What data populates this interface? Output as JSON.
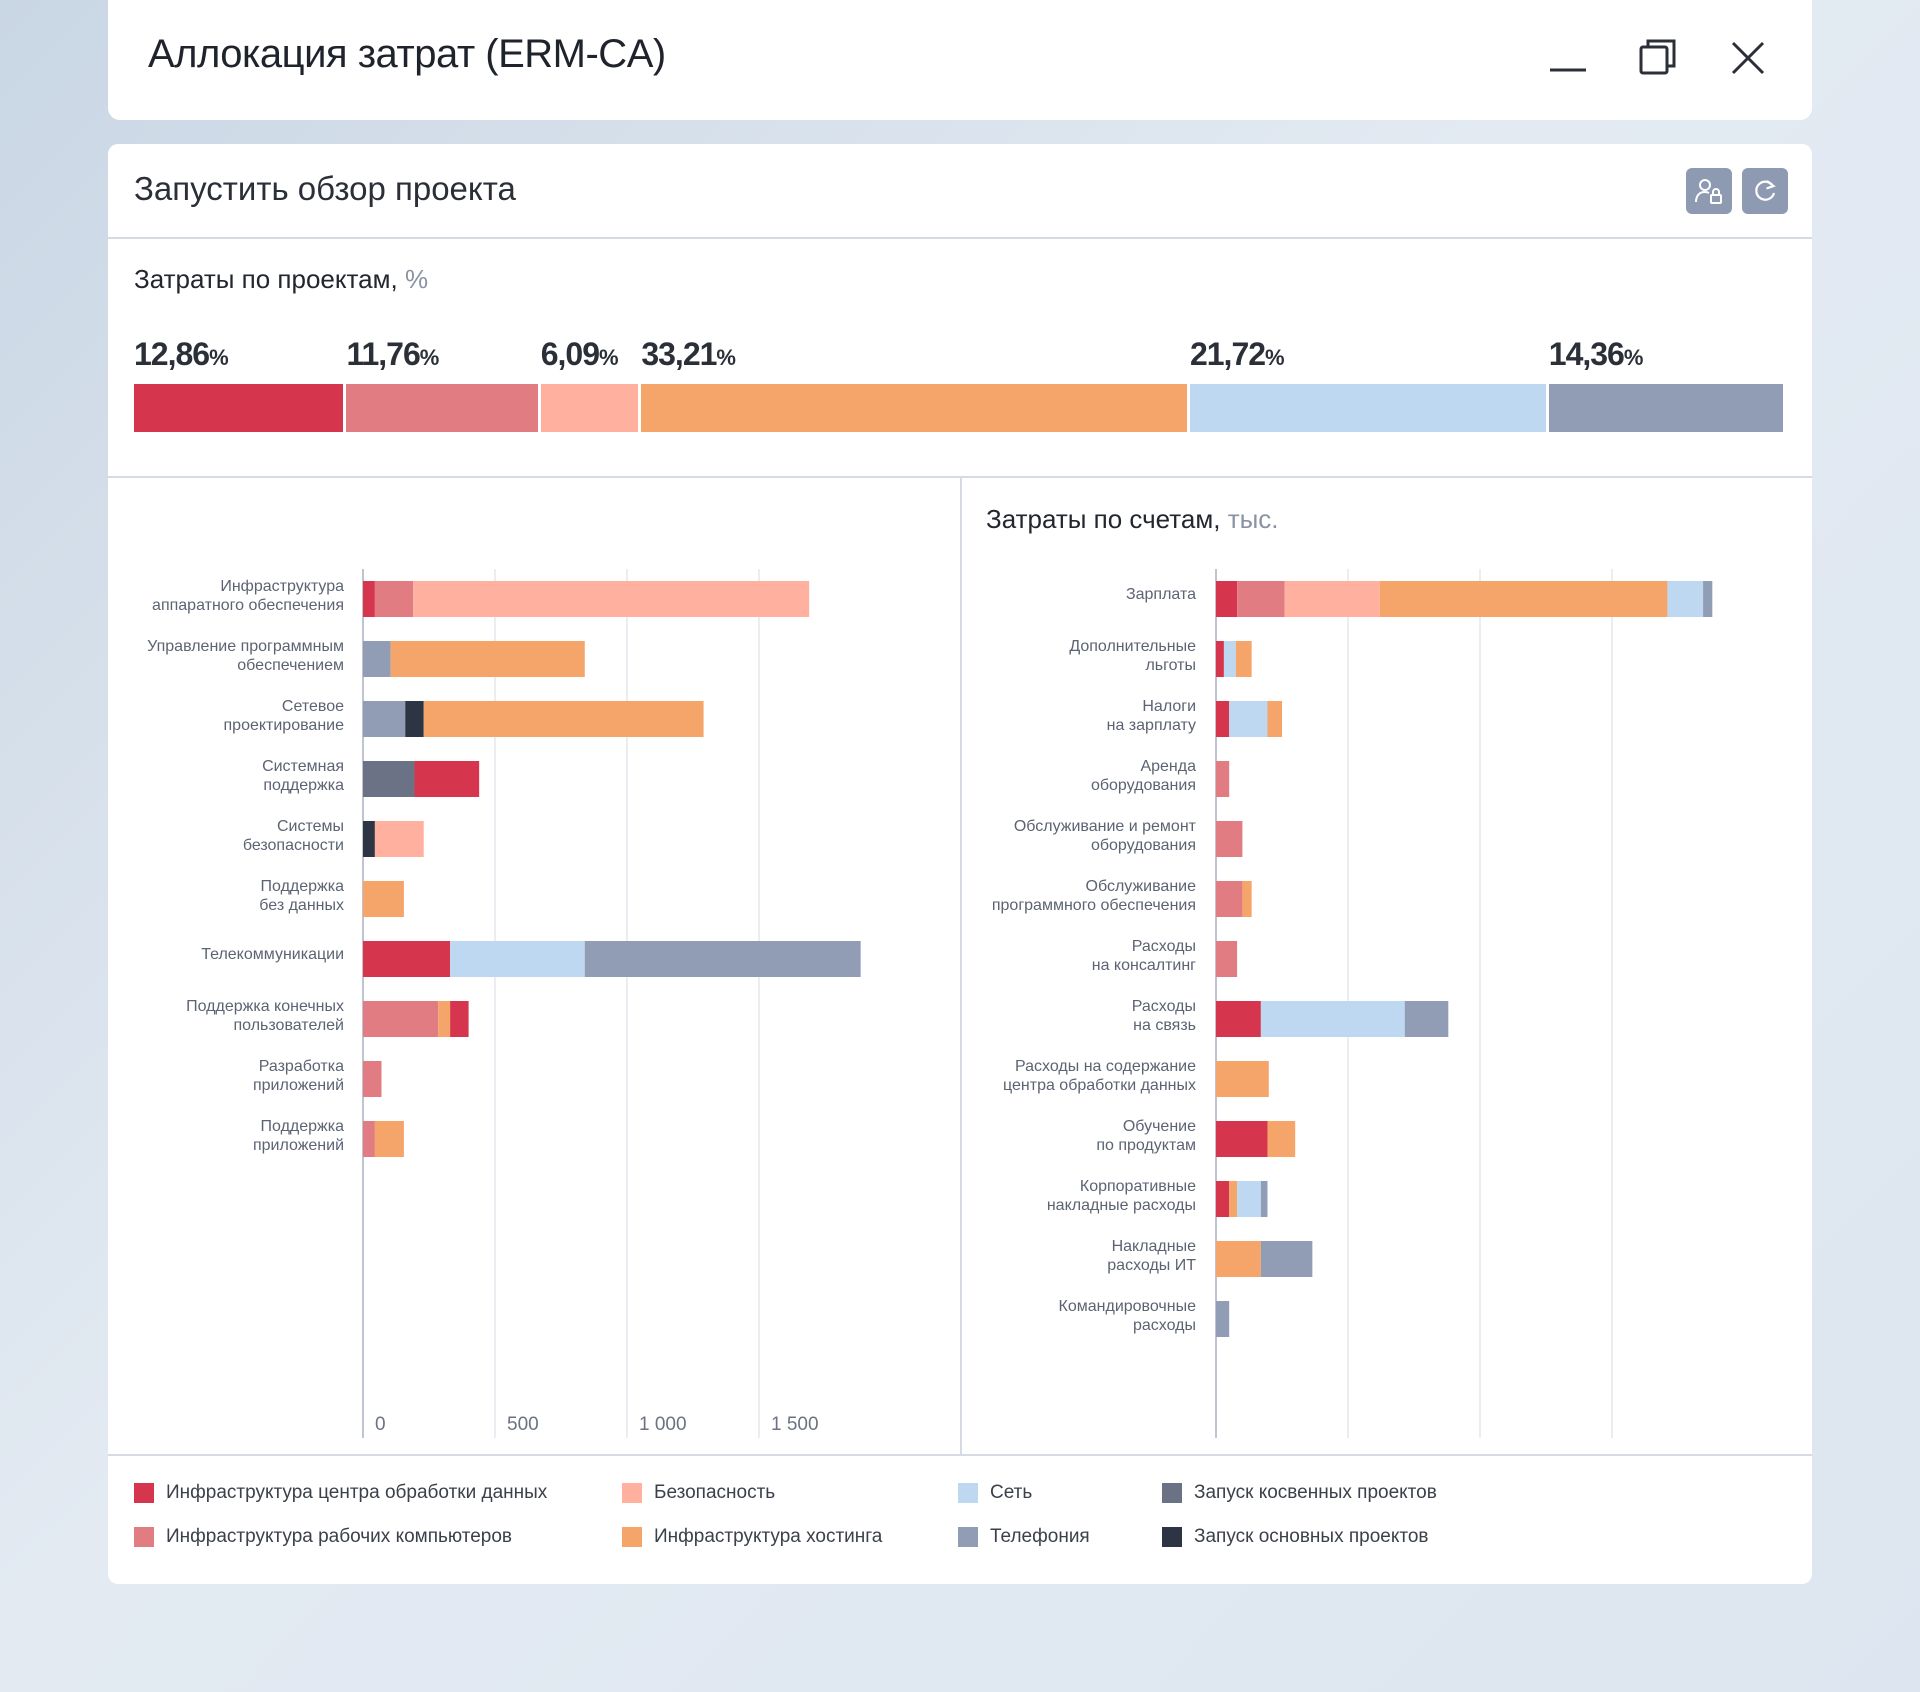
{
  "window": {
    "title": "Аллокация затрат (ERM-CA)"
  },
  "panel": {
    "title": "Запустить обзор проекта"
  },
  "colors": {
    "dc_infra": "#d6364d",
    "workstation_infra": "#e07c82",
    "security": "#ffb09e",
    "hosting": "#f5a569",
    "network": "#bdd8f0",
    "telephony": "#919db5",
    "indirect_launch": "#6b7285",
    "main_launch": "#2d3443"
  },
  "project_costs": {
    "title": "Затраты по проектам,",
    "unit": "%",
    "segments": [
      {
        "key": "dc_infra",
        "value": "12,86",
        "pct": 12.86
      },
      {
        "key": "workstation_infra",
        "value": "11,76",
        "pct": 11.76
      },
      {
        "key": "security",
        "value": "6,09",
        "pct": 6.09
      },
      {
        "key": "hosting",
        "value": "33,21",
        "pct": 33.21
      },
      {
        "key": "network",
        "value": "21,72",
        "pct": 21.72
      },
      {
        "key": "telephony",
        "value": "14,36",
        "pct": 14.36
      }
    ],
    "pct_sign": "%"
  },
  "chart_data": [
    {
      "type": "bar",
      "orientation": "horizontal",
      "stacked": true,
      "title": "",
      "xlim": [
        0,
        2000
      ],
      "xticks": [
        0,
        500,
        1000,
        1500
      ],
      "xtick_labels": [
        "0",
        "500",
        "1 000",
        "1 500"
      ],
      "categories": [
        [
          "Инфраструктура",
          "аппаратного обеспечения"
        ],
        [
          "Управление программным",
          "обеспечением"
        ],
        [
          "Сетевое",
          "проектирование"
        ],
        [
          "Системная",
          "поддержка"
        ],
        [
          "Системы",
          "безопасности"
        ],
        [
          "Поддержка",
          "без данных"
        ],
        [
          "Телекоммуникации"
        ],
        [
          "Поддержка конечных",
          "пользователей"
        ],
        [
          "Разработка",
          "приложений"
        ],
        [
          "Поддержка",
          "приложений"
        ]
      ],
      "bars": [
        [
          [
            "dc_infra",
            45
          ],
          [
            "workstation_infra",
            145
          ],
          [
            "security",
            1500
          ]
        ],
        [
          [
            "telephony",
            105
          ],
          [
            "hosting",
            735
          ]
        ],
        [
          [
            "telephony",
            160
          ],
          [
            "main_launch",
            70
          ],
          [
            "hosting",
            1060
          ]
        ],
        [
          [
            "indirect_launch",
            195
          ],
          [
            "dc_infra",
            245
          ]
        ],
        [
          [
            "main_launch",
            45
          ],
          [
            "security",
            185
          ]
        ],
        [
          [
            "hosting",
            155
          ]
        ],
        [
          [
            "dc_infra",
            330
          ],
          [
            "network",
            510
          ],
          [
            "telephony",
            1045
          ]
        ],
        [
          [
            "workstation_infra",
            285
          ],
          [
            "hosting",
            45
          ],
          [
            "dc_infra",
            70
          ]
        ],
        [
          [
            "workstation_infra",
            70
          ]
        ],
        [
          [
            "workstation_infra",
            45
          ],
          [
            "hosting",
            110
          ]
        ]
      ]
    },
    {
      "type": "bar",
      "orientation": "horizontal",
      "stacked": true,
      "title": "Затраты по счетам,",
      "unit": "тыс.",
      "xlim": [
        0,
        2000
      ],
      "xticks": [
        0,
        500,
        1000,
        1500
      ],
      "categories": [
        [
          "Зарплата"
        ],
        [
          "Дополнительные",
          "льготы"
        ],
        [
          "Налоги",
          "на зарплату"
        ],
        [
          "Аренда",
          "оборудования"
        ],
        [
          "Обслуживание и ремонт",
          "оборудования"
        ],
        [
          "Обслуживание",
          "программного обеспечения"
        ],
        [
          "Расходы",
          "на консалтинг"
        ],
        [
          "Расходы",
          "на связь"
        ],
        [
          "Расходы на содержание",
          "центра обработки данных"
        ],
        [
          "Обучение",
          "по продуктам"
        ],
        [
          "Корпоративные",
          "накладные расходы"
        ],
        [
          "Накладные",
          "расходы ИТ"
        ],
        [
          "Командировочные",
          "расходы"
        ]
      ],
      "bars": [
        [
          [
            "dc_infra",
            80
          ],
          [
            "workstation_infra",
            180
          ],
          [
            "security",
            360
          ],
          [
            "hosting",
            1090
          ],
          [
            "network",
            135
          ],
          [
            "telephony",
            35
          ]
        ],
        [
          [
            "dc_infra",
            30
          ],
          [
            "network",
            45
          ],
          [
            "hosting",
            60
          ]
        ],
        [
          [
            "dc_infra",
            50
          ],
          [
            "network",
            145
          ],
          [
            "hosting",
            55
          ]
        ],
        [
          [
            "workstation_infra",
            50
          ]
        ],
        [
          [
            "workstation_infra",
            100
          ]
        ],
        [
          [
            "workstation_infra",
            100
          ],
          [
            "hosting",
            35
          ]
        ],
        [
          [
            "workstation_infra",
            80
          ]
        ],
        [
          [
            "dc_infra",
            170
          ],
          [
            "network",
            545
          ],
          [
            "telephony",
            165
          ]
        ],
        [
          [
            "hosting",
            200
          ]
        ],
        [
          [
            "dc_infra",
            195
          ],
          [
            "hosting",
            105
          ]
        ],
        [
          [
            "dc_infra",
            50
          ],
          [
            "hosting",
            30
          ],
          [
            "network",
            90
          ],
          [
            "telephony",
            25
          ]
        ],
        [
          [
            "hosting",
            170
          ],
          [
            "telephony",
            195
          ]
        ],
        [
          [
            "telephony",
            50
          ]
        ]
      ]
    }
  ],
  "legend": [
    {
      "key": "dc_infra",
      "label": "Инфраструктура центра обработки данных"
    },
    {
      "key": "workstation_infra",
      "label": "Инфраструктура рабочих компьютеров"
    },
    {
      "key": "security",
      "label": "Безопасность"
    },
    {
      "key": "hosting",
      "label": "Инфраструктура хостинга"
    },
    {
      "key": "network",
      "label": "Сеть"
    },
    {
      "key": "telephony",
      "label": "Телефония"
    },
    {
      "key": "indirect_launch",
      "label": "Запуск косвенных проектов"
    },
    {
      "key": "main_launch",
      "label": "Запуск основных проектов"
    }
  ],
  "icons": {
    "minimize": "minimize-icon",
    "restore": "restore-icon",
    "close": "close-icon",
    "user_lock": "user-lock-icon",
    "refresh": "refresh-icon"
  }
}
